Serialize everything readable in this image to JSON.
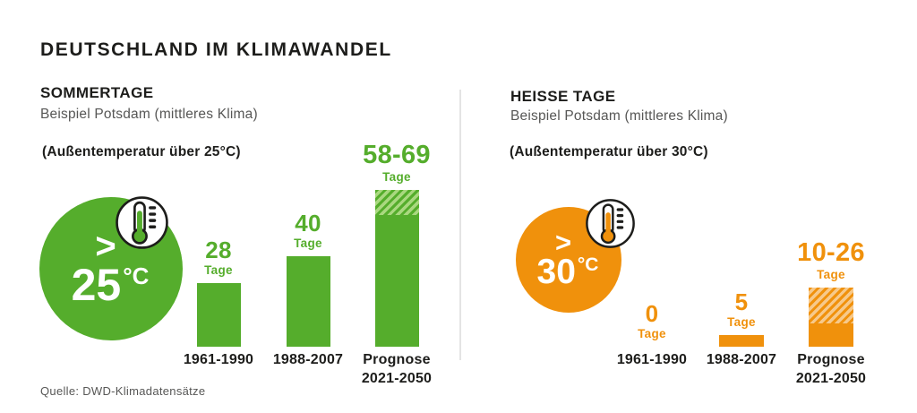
{
  "title": "DEUTSCHLAND IM KLIMAWANDEL",
  "source": "Quelle: DWD-Klimadatensätze",
  "colors": {
    "green": "#55ad2c",
    "green_light": "#a9d87f",
    "orange": "#f0910c",
    "orange_light": "#f7c98a",
    "text_dark": "#1d1d1b",
    "text_gray": "#575756"
  },
  "chart_data": [
    {
      "type": "bar",
      "heading": "SOMMERTAGE",
      "subheading": "Beispiel Potsdam (mittleres Klima)",
      "condition": "(Außentemperatur über 25°C)",
      "badge_gt": ">",
      "badge_value": "25",
      "badge_unit": "°C",
      "unit_label": "Tage",
      "color": "#55ad2c",
      "color_light": "#a9d87f",
      "categories": [
        "1961-1990",
        "1988-2007",
        "Prognose\n2021-2050"
      ],
      "bars": [
        {
          "display": "28",
          "value": 28
        },
        {
          "display": "40",
          "value": 40
        },
        {
          "display": "58-69",
          "value": 58,
          "value_max": 69
        }
      ],
      "ylabel": "Tage",
      "legend": "hatched area = prognosis range"
    },
    {
      "type": "bar",
      "heading": "HEISSE TAGE",
      "subheading": "Beispiel Potsdam (mittleres Klima)",
      "condition": "(Außentemperatur über 30°C)",
      "badge_gt": ">",
      "badge_value": "30",
      "badge_unit": "°C",
      "unit_label": "Tage",
      "color": "#f0910c",
      "color_light": "#f7c98a",
      "categories": [
        "1961-1990",
        "1988-2007",
        "Prognose\n2021-2050"
      ],
      "bars": [
        {
          "display": "0",
          "value": 0
        },
        {
          "display": "5",
          "value": 5
        },
        {
          "display": "10-26",
          "value": 10,
          "value_max": 26
        }
      ],
      "ylabel": "Tage",
      "legend": "hatched area = prognosis range"
    }
  ]
}
